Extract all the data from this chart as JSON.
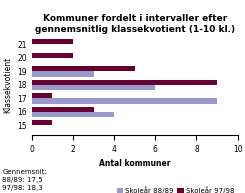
{
  "title": "Kommuner fordelt i intervaller efter\ngennemsnitlig klassekvotient (1-10 kl.)",
  "categories": [
    15,
    16,
    17,
    18,
    19,
    20,
    21
  ],
  "values_8889": [
    0,
    4,
    9,
    6,
    3,
    0,
    0
  ],
  "values_9798": [
    1,
    3,
    1,
    9,
    5,
    2,
    2
  ],
  "color_8889": "#9999cc",
  "color_9798": "#660033",
  "xlabel": "Antal kommuner",
  "ylabel": "Klassekvotient",
  "xlim": [
    0,
    10
  ],
  "xticks": [
    0,
    2,
    4,
    6,
    8,
    10
  ],
  "legend_8889": "Skoleår 88/89",
  "legend_9798": "Skoleår 97/98",
  "footnote_line1": "Gennemsnit:",
  "footnote_line2": "88/89: 17,5",
  "footnote_line3": "97/98: 18,3",
  "title_fontsize": 6.5,
  "axis_label_fontsize": 5.5,
  "tick_fontsize": 5.5,
  "legend_fontsize": 5.0,
  "footnote_fontsize": 5.0,
  "bar_height": 0.38
}
